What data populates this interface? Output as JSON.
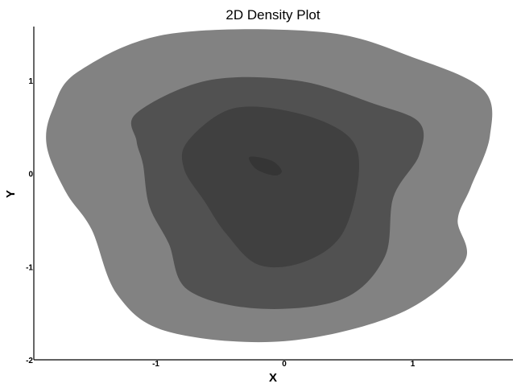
{
  "chart_data": {
    "type": "density",
    "title": "2D Density Plot",
    "xlabel": "X",
    "ylabel": "Y",
    "xlim": [
      -1.95,
      1.78
    ],
    "ylim": [
      -2.0,
      1.58
    ],
    "x_ticks": [
      -1,
      0,
      1
    ],
    "y_ticks": [
      -2,
      -1,
      0,
      1
    ],
    "grid": false,
    "legend": "none",
    "levels": [
      {
        "name": "level-1",
        "color": "#828282",
        "points": [
          [
            -1.6,
            1.1
          ],
          [
            -0.9,
            1.5
          ],
          [
            0.3,
            1.52
          ],
          [
            1.0,
            1.25
          ],
          [
            1.55,
            0.9
          ],
          [
            1.6,
            0.4
          ],
          [
            1.45,
            -0.15
          ],
          [
            1.35,
            -0.5
          ],
          [
            1.4,
            -0.95
          ],
          [
            0.9,
            -1.5
          ],
          [
            0.0,
            -1.8
          ],
          [
            -0.9,
            -1.7
          ],
          [
            -1.3,
            -1.3
          ],
          [
            -1.5,
            -0.6
          ],
          [
            -1.7,
            -0.2
          ],
          [
            -1.85,
            0.3
          ],
          [
            -1.8,
            0.7
          ]
        ]
      },
      {
        "name": "level-2",
        "color": "#515151",
        "points": [
          [
            -1.15,
            0.65
          ],
          [
            -0.6,
            1.0
          ],
          [
            0.1,
            1.0
          ],
          [
            0.7,
            0.75
          ],
          [
            1.05,
            0.55
          ],
          [
            1.05,
            0.2
          ],
          [
            0.85,
            -0.25
          ],
          [
            0.78,
            -0.9
          ],
          [
            0.45,
            -1.35
          ],
          [
            -0.2,
            -1.45
          ],
          [
            -0.75,
            -1.25
          ],
          [
            -0.9,
            -0.75
          ],
          [
            -1.05,
            -0.35
          ],
          [
            -1.1,
            0.1
          ],
          [
            -1.15,
            0.35
          ]
        ]
      },
      {
        "name": "level-3",
        "color": "#404040",
        "points": [
          [
            -0.75,
            0.35
          ],
          [
            -0.4,
            0.7
          ],
          [
            0.1,
            0.65
          ],
          [
            0.5,
            0.4
          ],
          [
            0.58,
            0.0
          ],
          [
            0.45,
            -0.65
          ],
          [
            0.15,
            -0.95
          ],
          [
            -0.2,
            -0.98
          ],
          [
            -0.45,
            -0.65
          ],
          [
            -0.62,
            -0.3
          ],
          [
            -0.78,
            0.05
          ]
        ]
      },
      {
        "name": "level-4",
        "color": "#353535",
        "points": [
          [
            -0.27,
            0.18
          ],
          [
            -0.1,
            0.14
          ],
          [
            -0.02,
            0.03
          ],
          [
            -0.08,
            -0.02
          ],
          [
            -0.22,
            0.05
          ]
        ]
      }
    ]
  }
}
